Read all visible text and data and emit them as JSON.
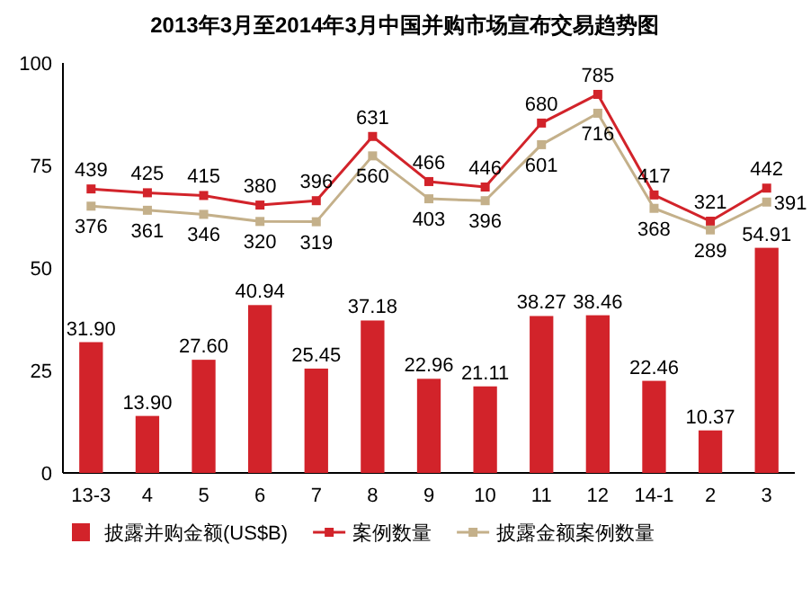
{
  "chart_data": {
    "type": "bar",
    "title": "2013年3月至2014年3月中国并购市场宣布交易趋势图",
    "categories": [
      "13-3",
      "4",
      "5",
      "6",
      "7",
      "8",
      "9",
      "10",
      "11",
      "12",
      "14-1",
      "2",
      "3"
    ],
    "series": [
      {
        "name": "披露并购金额(US$B)",
        "color": "#d2232a",
        "values": [
          31.9,
          13.9,
          27.6,
          40.94,
          25.45,
          37.18,
          22.96,
          21.11,
          38.27,
          38.46,
          22.46,
          10.37,
          54.91
        ],
        "value_labels": [
          "31.90",
          "13.90",
          "27.60",
          "40.94",
          "25.45",
          "37.18",
          "22.96",
          "21.11",
          "38.27",
          "38.46",
          "22.46",
          "10.37",
          "54.91"
        ]
      },
      {
        "name": "案例数量",
        "type": "line",
        "axis": "y2",
        "color": "#d2232a",
        "values": [
          439,
          425,
          415,
          380,
          396,
          631,
          466,
          446,
          680,
          785,
          417,
          321,
          442
        ]
      },
      {
        "name": "披露金额案例数量",
        "type": "line",
        "axis": "y2",
        "color": "#c4b08a",
        "values": [
          376,
          361,
          346,
          320,
          319,
          560,
          403,
          396,
          601,
          716,
          368,
          289,
          391
        ]
      }
    ],
    "ylim": [
      0,
      100
    ],
    "yticks": [
      0,
      25,
      50,
      75,
      100
    ],
    "y2lim": [
      -600,
      900
    ],
    "data_labels": true,
    "legend": "bottom",
    "marker": "square"
  }
}
